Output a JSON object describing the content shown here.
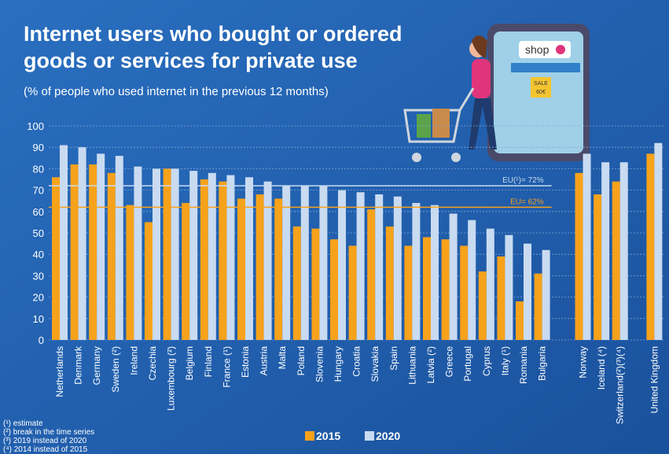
{
  "chart_data": {
    "type": "bar",
    "title": [
      "Internet users who bought or ordered",
      "goods or services for private use"
    ],
    "subtitle": "(% of people who used internet in the previous 12 months)",
    "categories": [
      "Netherlands",
      "Denmark",
      "Germany",
      "Sweden (²)",
      "Ireland",
      "Czechia",
      "Luxembourg (²)",
      "Belgium",
      "Finland",
      "France (¹)",
      "Estonia",
      "Austria",
      "Malta",
      "Poland",
      "Slovenia",
      "Hungary",
      "Croatia",
      "Slovakia",
      "Spain",
      "Lithuania",
      "Latvia (²)",
      "Greece",
      "Portugal",
      "Cyprus",
      "Italy (¹)",
      "Romania",
      "Bulgaria",
      "Norway",
      "Iceland (⁴)",
      "Switzerland(²)(³)(⁴)",
      "United Kingdom"
    ],
    "series": [
      {
        "name": "2015",
        "color": "#f7a21b",
        "values": [
          76,
          82,
          82,
          78,
          63,
          55,
          80,
          64,
          75,
          74,
          66,
          68,
          66,
          53,
          52,
          47,
          44,
          61,
          53,
          44,
          48,
          47,
          44,
          32,
          39,
          18,
          31,
          78,
          68,
          74,
          87
        ]
      },
      {
        "name": "2020",
        "color": "#c9dbf1",
        "values": [
          91,
          90,
          87,
          86,
          81,
          80,
          80,
          79,
          78,
          77,
          76,
          74,
          72,
          72,
          72,
          70,
          69,
          68,
          67,
          64,
          63,
          59,
          56,
          52,
          49,
          45,
          42,
          87,
          83,
          83,
          92
        ]
      }
    ],
    "reference_lines": [
      {
        "value": 72,
        "label": "EU(¹)= 72%",
        "color": "#c9dbf1"
      },
      {
        "value": 62,
        "label": "EU= 62%",
        "color": "#f7a21b"
      }
    ],
    "ylim": [
      0,
      100
    ],
    "yticks": [
      0,
      10,
      20,
      30,
      40,
      50,
      60,
      70,
      80,
      90,
      100
    ],
    "grid": true,
    "footnotes": [
      "(¹) estimate",
      "(²) break in the time series",
      "(³) 2019 instead of 2020",
      "(⁴) 2014 instead of 2015"
    ],
    "illustration": {
      "sign": "shop",
      "sale": "SALE",
      "price": "60€"
    }
  }
}
